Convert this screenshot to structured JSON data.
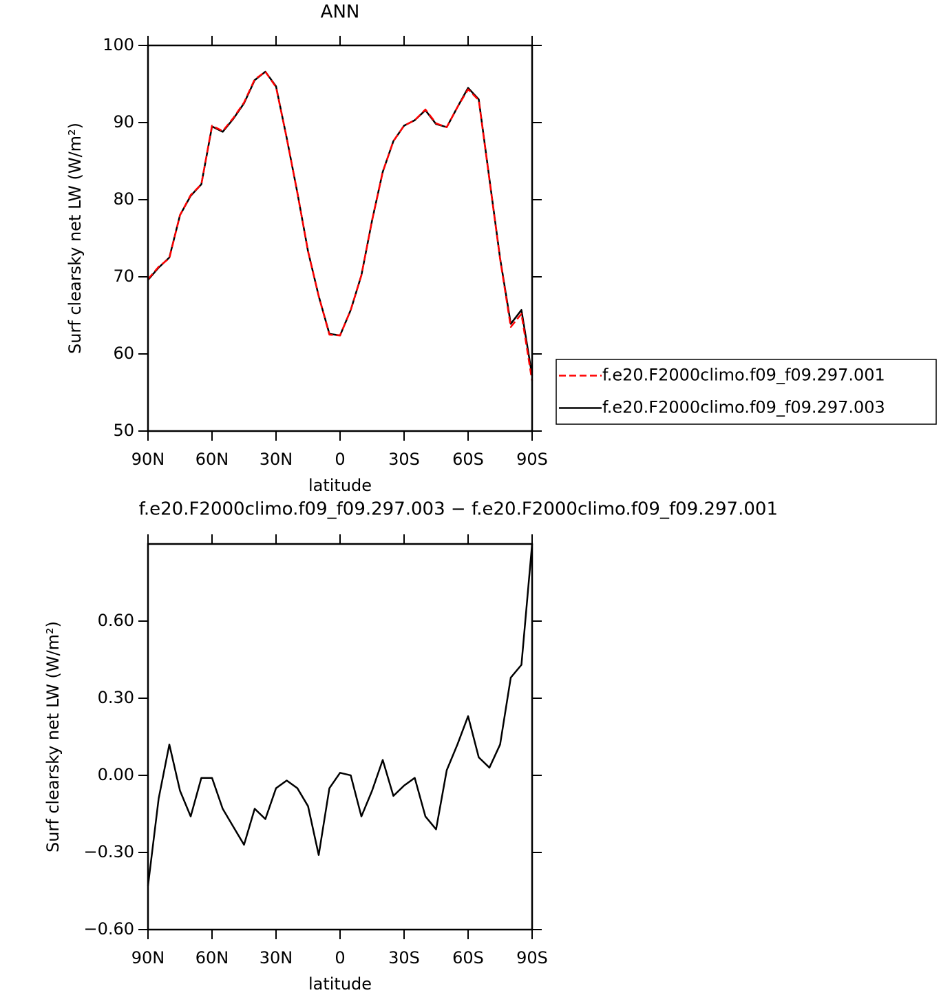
{
  "chart_data": [
    {
      "type": "line",
      "title": "ANN",
      "ylabel": "Surf clearsky net LW (W/m²)",
      "xlabel": "latitude",
      "x": [
        90,
        85,
        80,
        75,
        70,
        65,
        60,
        55,
        50,
        45,
        40,
        35,
        30,
        25,
        20,
        15,
        10,
        5,
        0,
        -5,
        -10,
        -15,
        -20,
        -25,
        -30,
        -35,
        -40,
        -45,
        -50,
        -55,
        -60,
        -65,
        -70,
        -75,
        -80,
        -85,
        -90
      ],
      "series": [
        {
          "name": "f.e20.F2000climo.f09_f09.297.001",
          "color": "#ff0000",
          "dash": "dashed",
          "values": [
            69.7,
            71.3,
            72.4,
            78,
            80.6,
            82,
            89.6,
            88.9,
            90.6,
            92.6,
            95.6,
            96.6,
            94.6,
            88,
            80.9,
            73.3,
            67.5,
            62.5,
            62.4,
            65.7,
            70.2,
            77.3,
            83.6,
            87.6,
            89.6,
            90.3,
            91.7,
            89.9,
            89.4,
            92,
            94.3,
            92.9,
            82.6,
            72.3,
            63.5,
            65.2,
            56.5
          ]
        },
        {
          "name": "f.e20.F2000climo.f09_f09.297.003",
          "color": "#000000",
          "dash": "solid",
          "values": [
            69.6,
            71.2,
            72.5,
            78,
            80.5,
            82,
            89.5,
            88.8,
            90.5,
            92.5,
            95.5,
            96.6,
            94.7,
            88,
            80.9,
            73.3,
            67.5,
            62.6,
            62.4,
            65.7,
            70.2,
            77.3,
            83.6,
            87.6,
            89.6,
            90.3,
            91.6,
            89.8,
            89.4,
            92,
            94.5,
            93,
            82.7,
            72.4,
            63.9,
            65.7,
            57.2
          ]
        }
      ],
      "xlim": [
        90,
        -90
      ],
      "xticks": [
        {
          "value": 90,
          "label": "90N"
        },
        {
          "value": 60,
          "label": "60N"
        },
        {
          "value": 30,
          "label": "30N"
        },
        0,
        {
          "value": -30,
          "label": "30S"
        },
        {
          "value": -60,
          "label": "60S"
        },
        {
          "value": -90,
          "label": "90S"
        }
      ],
      "ylim": [
        50,
        100
      ],
      "yticks": [
        50,
        60,
        70,
        80,
        90,
        100
      ],
      "legend": "right"
    },
    {
      "type": "line",
      "title": "f.e20.F2000climo.f09_f09.297.003 − f.e20.F2000climo.f09_f09.297.001",
      "ylabel": "Surf clearsky net LW (W/m²)",
      "xlabel": "latitude",
      "x": [
        90,
        85,
        80,
        75,
        70,
        65,
        60,
        55,
        50,
        45,
        40,
        35,
        30,
        25,
        20,
        15,
        10,
        5,
        0,
        -5,
        -10,
        -15,
        -20,
        -25,
        -30,
        -35,
        -40,
        -45,
        -50,
        -55,
        -60,
        -65,
        -70,
        -75,
        -80,
        -85,
        -90
      ],
      "series": [
        {
          "color": "#000000",
          "dash": "solid",
          "values": [
            -0.43,
            -0.09,
            0.12,
            -0.06,
            -0.16,
            -0.01,
            -0.01,
            -0.13,
            -0.2,
            -0.27,
            -0.13,
            -0.17,
            -0.05,
            -0.02,
            -0.05,
            -0.12,
            -0.31,
            -0.05,
            0.01,
            0,
            -0.16,
            -0.06,
            0.06,
            -0.08,
            -0.04,
            -0.01,
            -0.16,
            -0.21,
            0.02,
            0.12,
            0.23,
            0.07,
            0.03,
            0.12,
            0.38,
            0.43,
            0.9
          ]
        }
      ],
      "xlim": [
        90,
        -90
      ],
      "xticks": [
        {
          "value": 90,
          "label": "90N"
        },
        {
          "value": 60,
          "label": "60N"
        },
        {
          "value": 30,
          "label": "30N"
        },
        0,
        {
          "value": -30,
          "label": "30S"
        },
        {
          "value": -60,
          "label": "60S"
        },
        {
          "value": -90,
          "label": "90S"
        }
      ],
      "ylim": [
        -0.6,
        0.9
      ],
      "yticks": [
        {
          "value": -0.6,
          "label": "−0.60"
        },
        {
          "value": -0.3,
          "label": "−0.30"
        },
        {
          "value": 0,
          "label": "0.00"
        },
        {
          "value": 0.3,
          "label": "0.30"
        },
        {
          "value": 0.6,
          "label": "0.60"
        }
      ]
    }
  ]
}
